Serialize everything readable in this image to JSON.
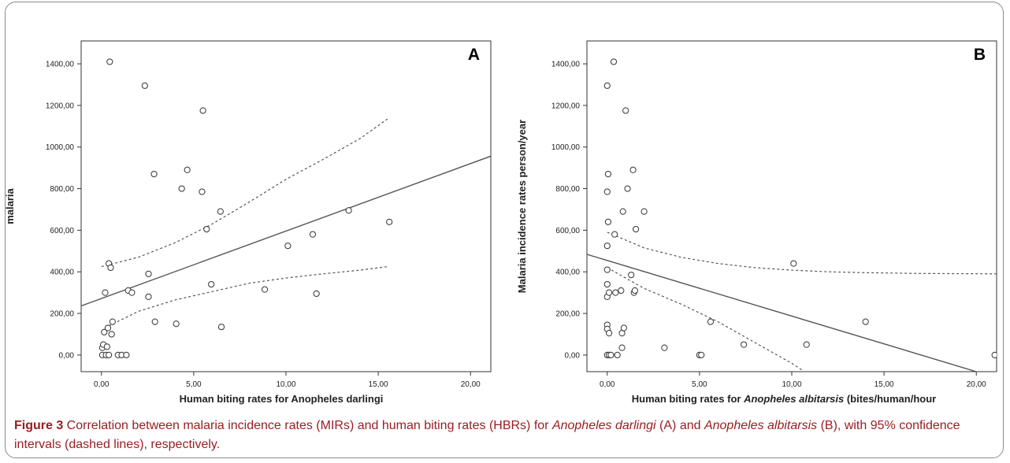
{
  "caption": {
    "label": "Figure 3",
    "p1": " Correlation between malaria incidence rates (MIRs) and human biting rates (HBRs) for ",
    "sp1": "Anopheles darlingi",
    "p2": " (A) and ",
    "sp2": "Anopheles albitarsis",
    "p3": " (B), with 95% confidence intervals (dashed lines), respectively."
  },
  "colors": {
    "caption": "#9a1e23",
    "marker": "#333333",
    "line": "#555555"
  },
  "chart_data": [
    {
      "type": "scatter",
      "panel_label": "A",
      "title": "",
      "xlabel_parts": [
        {
          "text": "Human biting rates for Anopheles darlingi",
          "italic": false
        }
      ],
      "ylabel": "malaria",
      "xlim": [
        -1.1,
        21.1
      ],
      "ylim": [
        -80,
        1510
      ],
      "x_ticks": [
        0,
        5,
        10,
        15,
        20
      ],
      "x_tick_labels": [
        "0,00",
        "5,00",
        "10,00",
        "15,00",
        "20,00"
      ],
      "y_ticks": [
        0,
        200,
        400,
        600,
        800,
        1000,
        1200,
        1400
      ],
      "y_tick_labels": [
        "0,00",
        "200,00",
        "400,00",
        "600,00",
        "800,00",
        "1000,00",
        "1200,00",
        "1400,00"
      ],
      "grid": false,
      "points": [
        [
          0.05,
          0
        ],
        [
          0.05,
          35
        ],
        [
          0.1,
          50
        ],
        [
          0.15,
          110
        ],
        [
          0.2,
          300
        ],
        [
          0.25,
          0
        ],
        [
          0.3,
          40
        ],
        [
          0.35,
          130
        ],
        [
          0.4,
          0
        ],
        [
          0.4,
          440
        ],
        [
          0.45,
          1410
        ],
        [
          0.5,
          420
        ],
        [
          0.55,
          100
        ],
        [
          0.6,
          160
        ],
        [
          0.9,
          0
        ],
        [
          1.1,
          0
        ],
        [
          1.35,
          0
        ],
        [
          1.45,
          310
        ],
        [
          1.65,
          300
        ],
        [
          2.35,
          1295
        ],
        [
          2.55,
          390
        ],
        [
          2.55,
          280
        ],
        [
          2.85,
          870
        ],
        [
          2.9,
          160
        ],
        [
          4.05,
          150
        ],
        [
          4.35,
          800
        ],
        [
          4.65,
          890
        ],
        [
          5.45,
          785
        ],
        [
          5.5,
          1175
        ],
        [
          5.7,
          605
        ],
        [
          5.95,
          340
        ],
        [
          6.45,
          690
        ],
        [
          6.5,
          135
        ],
        [
          8.85,
          315
        ],
        [
          10.1,
          525
        ],
        [
          11.45,
          580
        ],
        [
          11.65,
          295
        ],
        [
          13.4,
          695
        ],
        [
          15.6,
          640
        ]
      ],
      "fit_line": [
        [
          -1.1,
          236
        ],
        [
          21.1,
          956
        ]
      ],
      "ci_upper": [
        [
          0.0,
          425
        ],
        [
          2.0,
          470
        ],
        [
          4.0,
          540
        ],
        [
          6.0,
          630
        ],
        [
          8.0,
          735
        ],
        [
          10.0,
          845
        ],
        [
          12.0,
          940
        ],
        [
          14.0,
          1040
        ],
        [
          15.5,
          1135
        ]
      ],
      "ci_lower": [
        [
          0.4,
          140
        ],
        [
          2.0,
          210
        ],
        [
          4.0,
          265
        ],
        [
          6.0,
          305
        ],
        [
          8.0,
          345
        ],
        [
          10.0,
          370
        ],
        [
          12.0,
          390
        ],
        [
          14.0,
          408
        ],
        [
          15.5,
          425
        ]
      ]
    },
    {
      "type": "scatter",
      "panel_label": "B",
      "title": "",
      "xlabel_parts": [
        {
          "text": "Human biting rates for ",
          "italic": false
        },
        {
          "text": "Anopheles albitarsis",
          "italic": true
        },
        {
          "text": " (bites/human/hour",
          "italic": false
        }
      ],
      "ylabel": "Malaria incidence rates person/year",
      "xlim": [
        -1.1,
        21.1
      ],
      "ylim": [
        -80,
        1510
      ],
      "x_ticks": [
        0,
        5,
        10,
        15,
        20
      ],
      "x_tick_labels": [
        "0,00",
        "5,00",
        "10,00",
        "15,00",
        "20,00"
      ],
      "y_ticks": [
        0,
        200,
        400,
        600,
        800,
        1000,
        1200,
        1400
      ],
      "y_tick_labels": [
        "0,00",
        "200,00",
        "400,00",
        "600,00",
        "800,00",
        "1000,00",
        "1200,00",
        "1400,00"
      ],
      "grid": false,
      "points": [
        [
          0.0,
          1295
        ],
        [
          0.05,
          870
        ],
        [
          0.0,
          785
        ],
        [
          0.05,
          640
        ],
        [
          0.0,
          525
        ],
        [
          0.0,
          410
        ],
        [
          0.0,
          340
        ],
        [
          0.0,
          280
        ],
        [
          0.1,
          300
        ],
        [
          0.0,
          145
        ],
        [
          0.0,
          125
        ],
        [
          0.1,
          105
        ],
        [
          0.0,
          0
        ],
        [
          0.1,
          0
        ],
        [
          0.2,
          0
        ],
        [
          0.35,
          1410
        ],
        [
          0.4,
          580
        ],
        [
          0.45,
          300
        ],
        [
          0.55,
          0
        ],
        [
          0.75,
          310
        ],
        [
          0.8,
          105
        ],
        [
          0.8,
          35
        ],
        [
          0.85,
          690
        ],
        [
          0.9,
          130
        ],
        [
          1.0,
          1175
        ],
        [
          1.1,
          800
        ],
        [
          1.3,
          385
        ],
        [
          1.4,
          890
        ],
        [
          1.45,
          300
        ],
        [
          1.5,
          310
        ],
        [
          1.55,
          605
        ],
        [
          2.0,
          690
        ],
        [
          3.1,
          35
        ],
        [
          5.0,
          0
        ],
        [
          5.1,
          0
        ],
        [
          5.6,
          160
        ],
        [
          7.4,
          50
        ],
        [
          10.1,
          440
        ],
        [
          10.8,
          50
        ],
        [
          14.0,
          160
        ],
        [
          21.0,
          0
        ]
      ],
      "fit_line": [
        [
          -1.1,
          484
        ],
        [
          20.0,
          -80
        ]
      ],
      "ci_upper": [
        [
          0.0,
          590
        ],
        [
          2.0,
          515
        ],
        [
          4.0,
          470
        ],
        [
          6.0,
          440
        ],
        [
          8.0,
          420
        ],
        [
          10.0,
          408
        ],
        [
          12.0,
          400
        ],
        [
          14.0,
          396
        ],
        [
          17.0,
          392
        ],
        [
          21.1,
          390
        ]
      ],
      "ci_lower": [
        [
          0.0,
          420
        ],
        [
          2.0,
          320
        ],
        [
          4.0,
          245
        ],
        [
          6.0,
          160
        ],
        [
          8.0,
          60
        ],
        [
          10.0,
          -40
        ],
        [
          10.6,
          -75
        ]
      ]
    }
  ]
}
